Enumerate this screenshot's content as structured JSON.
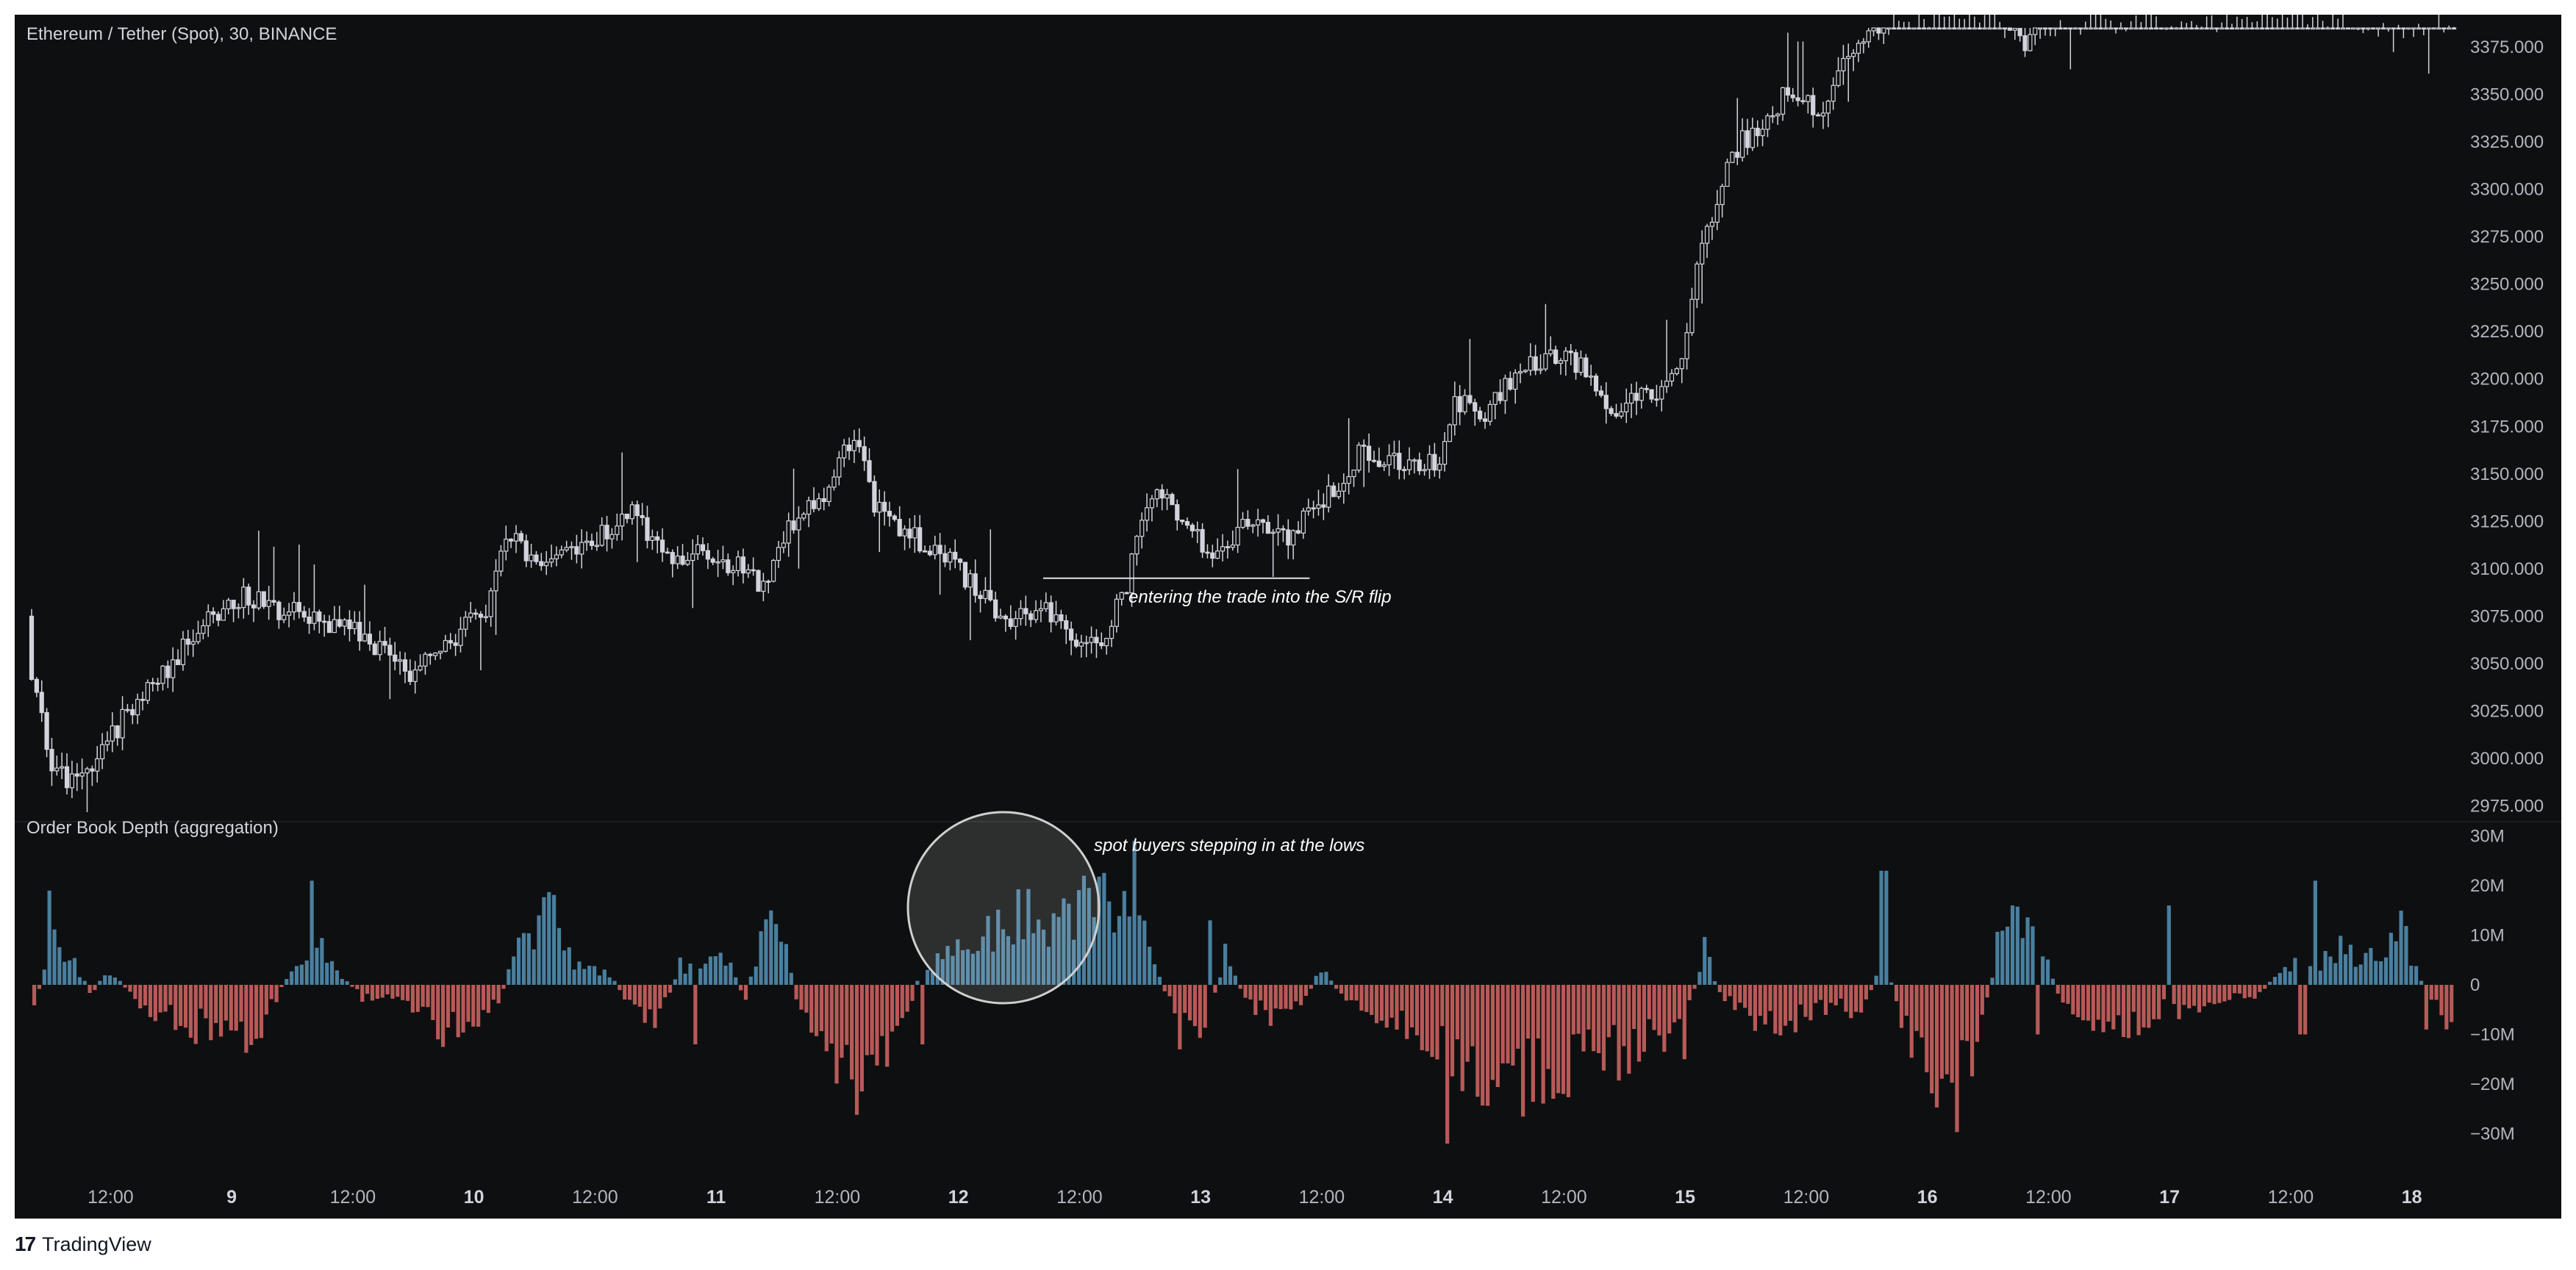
{
  "header": {
    "title": "Ethereum / Tether (Spot), 30, BINANCE"
  },
  "footer": {
    "brand": "TradingView",
    "logo_glyph": "17"
  },
  "colors": {
    "background": "#0e0f10",
    "candle": "#d1d4dc",
    "positive_bar": "#4a7f9e",
    "negative_bar": "#b75a58",
    "axis_text": "#b2b5be",
    "annotation_text": "#ffffff"
  },
  "annotations": {
    "trade": "entering the trade into the S/R flip",
    "buyers": "spot buyers stepping in at the lows"
  },
  "chart_data": [
    {
      "type": "candlestick",
      "title": "Ethereum / Tether (Spot), 30, BINANCE",
      "interval": "30",
      "exchange": "BINANCE",
      "y_ticks": [
        "3375.000",
        "3350.000",
        "3325.000",
        "3300.000",
        "3275.000",
        "3250.000",
        "3225.000",
        "3200.000",
        "3175.000",
        "3150.000",
        "3125.000",
        "3100.000",
        "3075.000",
        "3050.000",
        "3025.000",
        "3000.000",
        "2975.000"
      ],
      "ylim": [
        2975,
        3386
      ],
      "x_ticks": [
        {
          "label": "12:00",
          "bold": false
        },
        {
          "label": "9",
          "bold": true
        },
        {
          "label": "12:00",
          "bold": false
        },
        {
          "label": "10",
          "bold": true
        },
        {
          "label": "12:00",
          "bold": false
        },
        {
          "label": "11",
          "bold": true
        },
        {
          "label": "12:00",
          "bold": false
        },
        {
          "label": "12",
          "bold": true
        },
        {
          "label": "12:00",
          "bold": false
        },
        {
          "label": "13",
          "bold": true
        },
        {
          "label": "12:00",
          "bold": false
        },
        {
          "label": "14",
          "bold": true
        },
        {
          "label": "12:00",
          "bold": false
        },
        {
          "label": "15",
          "bold": true
        },
        {
          "label": "12:00",
          "bold": false
        },
        {
          "label": "16",
          "bold": true
        },
        {
          "label": "12:00",
          "bold": false
        },
        {
          "label": "17",
          "bold": true
        },
        {
          "label": "12:00",
          "bold": false
        },
        {
          "label": "18",
          "bold": true
        }
      ],
      "x_range_days": [
        8.0,
        18.3
      ],
      "price_path": [
        [
          8.0,
          3075
        ],
        [
          8.08,
          3072
        ],
        [
          8.15,
          3055
        ],
        [
          8.25,
          3000
        ],
        [
          8.33,
          2985
        ],
        [
          8.45,
          3000
        ],
        [
          8.6,
          3030
        ],
        [
          8.75,
          3050
        ],
        [
          8.9,
          3075
        ],
        [
          9.05,
          3085
        ],
        [
          9.15,
          3080
        ],
        [
          9.3,
          3075
        ],
        [
          9.45,
          3070
        ],
        [
          9.6,
          3060
        ],
        [
          9.75,
          3045
        ],
        [
          9.9,
          3060
        ],
        [
          10.05,
          3080
        ],
        [
          10.12,
          3120
        ],
        [
          10.25,
          3105
        ],
        [
          10.4,
          3110
        ],
        [
          10.55,
          3120
        ],
        [
          10.65,
          3130
        ],
        [
          10.78,
          3105
        ],
        [
          10.95,
          3110
        ],
        [
          11.1,
          3100
        ],
        [
          11.2,
          3090
        ],
        [
          11.3,
          3120
        ],
        [
          11.42,
          3135
        ],
        [
          11.5,
          3155
        ],
        [
          11.58,
          3175
        ],
        [
          11.65,
          3135
        ],
        [
          11.78,
          3120
        ],
        [
          11.9,
          3110
        ],
        [
          12.0,
          3100
        ],
        [
          12.1,
          3085
        ],
        [
          12.2,
          3070
        ],
        [
          12.35,
          3080
        ],
        [
          12.5,
          3060
        ],
        [
          12.6,
          3065
        ],
        [
          12.68,
          3085
        ],
        [
          12.75,
          3120
        ],
        [
          12.85,
          3145
        ],
        [
          12.95,
          3120
        ],
        [
          13.05,
          3110
        ],
        [
          13.2,
          3125
        ],
        [
          13.3,
          3120
        ],
        [
          13.38,
          3115
        ],
        [
          13.45,
          3135
        ],
        [
          13.55,
          3140
        ],
        [
          13.65,
          3160
        ],
        [
          13.8,
          3155
        ],
        [
          13.95,
          3155
        ],
        [
          14.02,
          3165
        ],
        [
          14.05,
          3190
        ],
        [
          14.15,
          3180
        ],
        [
          14.3,
          3200
        ],
        [
          14.45,
          3215
        ],
        [
          14.58,
          3205
        ],
        [
          14.7,
          3185
        ],
        [
          14.8,
          3190
        ],
        [
          14.9,
          3190
        ],
        [
          14.98,
          3210
        ],
        [
          15.05,
          3260
        ],
        [
          15.12,
          3290
        ],
        [
          15.2,
          3320
        ],
        [
          15.35,
          3340
        ],
        [
          15.45,
          3355
        ],
        [
          15.55,
          3340
        ],
        [
          15.65,
          3365
        ],
        [
          15.75,
          3378
        ],
        [
          15.82,
          3392
        ],
        [
          16.0,
          3400
        ],
        [
          16.3,
          3395
        ],
        [
          16.4,
          3372
        ],
        [
          16.5,
          3390
        ],
        [
          16.7,
          3395
        ],
        [
          17.0,
          3395
        ],
        [
          17.4,
          3398
        ],
        [
          17.7,
          3393
        ],
        [
          17.95,
          3388
        ],
        [
          18.3,
          3392
        ]
      ],
      "reference_line": {
        "price": 3095,
        "from_day": 12.35,
        "to_day": 13.45
      }
    },
    {
      "type": "bar",
      "title": "Order Book Depth (aggregation)",
      "y_ticks": [
        "30M",
        "20M",
        "10M",
        "0",
        "−10M",
        "−20M",
        "−30M"
      ],
      "ylim": [
        -33,
        33
      ],
      "unit": "M",
      "x_range_days": [
        8.0,
        18.3
      ],
      "profile": [
        [
          8.0,
          3
        ],
        [
          8.1,
          -5
        ],
        [
          8.2,
          -3
        ],
        [
          8.25,
          10
        ],
        [
          8.35,
          4
        ],
        [
          8.42,
          -2
        ],
        [
          8.5,
          3
        ],
        [
          8.6,
          -3
        ],
        [
          8.7,
          -6
        ],
        [
          8.8,
          -8
        ],
        [
          8.9,
          -9
        ],
        [
          9.0,
          -12
        ],
        [
          9.1,
          -10
        ],
        [
          9.25,
          3
        ],
        [
          9.35,
          12
        ],
        [
          9.45,
          2
        ],
        [
          9.55,
          -3
        ],
        [
          9.65,
          -2
        ],
        [
          9.8,
          -5
        ],
        [
          9.9,
          -10
        ],
        [
          10.0,
          -8
        ],
        [
          10.1,
          -3
        ],
        [
          10.2,
          10
        ],
        [
          10.32,
          15
        ],
        [
          10.42,
          4
        ],
        [
          10.55,
          2
        ],
        [
          10.65,
          -4
        ],
        [
          10.75,
          -9
        ],
        [
          10.85,
          4
        ],
        [
          10.95,
          4
        ],
        [
          11.05,
          5
        ],
        [
          11.12,
          -3
        ],
        [
          11.2,
          12
        ],
        [
          11.28,
          8
        ],
        [
          11.36,
          -8
        ],
        [
          11.45,
          -12
        ],
        [
          11.55,
          -18
        ],
        [
          11.65,
          -20
        ],
        [
          11.75,
          -12
        ],
        [
          11.85,
          3
        ],
        [
          11.95,
          6
        ],
        [
          12.0,
          7
        ],
        [
          12.08,
          8
        ],
        [
          12.18,
          12
        ],
        [
          12.28,
          15
        ],
        [
          12.38,
          12
        ],
        [
          12.5,
          14
        ],
        [
          12.6,
          20
        ],
        [
          12.68,
          18
        ],
        [
          12.78,
          9
        ],
        [
          12.88,
          -5
        ],
        [
          12.95,
          -8
        ],
        [
          13.02,
          -10
        ],
        [
          13.1,
          6
        ],
        [
          13.2,
          -4
        ],
        [
          13.3,
          -6
        ],
        [
          13.4,
          -4
        ],
        [
          13.5,
          3
        ],
        [
          13.6,
          -3
        ],
        [
          13.75,
          -6
        ],
        [
          13.85,
          -8
        ],
        [
          13.95,
          -10
        ],
        [
          14.05,
          -14
        ],
        [
          14.15,
          -18
        ],
        [
          14.25,
          -20
        ],
        [
          14.4,
          -18
        ],
        [
          14.55,
          -17
        ],
        [
          14.7,
          -14
        ],
        [
          14.8,
          -12
        ],
        [
          14.92,
          -10
        ],
        [
          15.0,
          -8
        ],
        [
          15.08,
          8
        ],
        [
          15.15,
          -3
        ],
        [
          15.25,
          -6
        ],
        [
          15.35,
          -8
        ],
        [
          15.45,
          -7
        ],
        [
          15.55,
          -5
        ],
        [
          15.65,
          -5
        ],
        [
          15.75,
          -4
        ],
        [
          15.82,
          6
        ],
        [
          15.9,
          -8
        ],
        [
          15.95,
          -12
        ],
        [
          16.05,
          -18
        ],
        [
          16.12,
          -21
        ],
        [
          16.2,
          -14
        ],
        [
          16.3,
          10
        ],
        [
          16.38,
          14
        ],
        [
          16.48,
          7
        ],
        [
          16.55,
          -3
        ],
        [
          16.65,
          -7
        ],
        [
          16.78,
          -9
        ],
        [
          16.9,
          -7
        ],
        [
          17.0,
          -4
        ],
        [
          17.1,
          -6
        ],
        [
          17.22,
          -3
        ],
        [
          17.35,
          -2
        ],
        [
          17.5,
          4
        ],
        [
          17.58,
          3
        ],
        [
          17.7,
          8
        ],
        [
          17.8,
          4
        ],
        [
          17.9,
          10
        ],
        [
          17.95,
          13
        ],
        [
          18.0,
          4
        ],
        [
          18.08,
          -2
        ],
        [
          18.15,
          -8
        ],
        [
          18.25,
          -14
        ],
        [
          18.3,
          -14
        ]
      ],
      "spikes": [
        [
          8.25,
          19
        ],
        [
          9.33,
          21
        ],
        [
          10.26,
          14
        ],
        [
          10.92,
          -12
        ],
        [
          11.22,
          15
        ],
        [
          11.85,
          -12
        ],
        [
          12.52,
          22
        ],
        [
          12.72,
          29
        ],
        [
          12.92,
          -13
        ],
        [
          13.04,
          13
        ],
        [
          14.02,
          -32
        ],
        [
          14.5,
          -22
        ],
        [
          15.0,
          -15
        ],
        [
          15.82,
          23
        ],
        [
          16.35,
          16
        ],
        [
          16.45,
          -10
        ],
        [
          17.0,
          16
        ],
        [
          17.55,
          -10
        ],
        [
          17.6,
          21
        ],
        [
          18.06,
          -9
        ]
      ]
    }
  ]
}
